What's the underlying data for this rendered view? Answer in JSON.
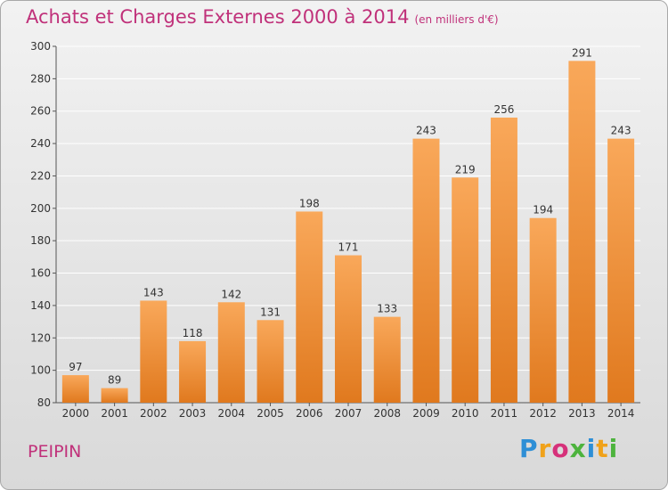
{
  "header": {
    "title": "Achats et Charges Externes 2000 à 2014",
    "subtitle": "(en milliers d'€)"
  },
  "footer": {
    "place": "PEIPIN",
    "logo_letters": [
      "P",
      "r",
      "o",
      "x",
      "i",
      "t",
      "i"
    ]
  },
  "colors": {
    "title": "#c0317a",
    "bar_top": "#f9a85a",
    "bar_bottom": "#e0791e",
    "gridline": "#ffffff"
  },
  "chart_data": {
    "type": "bar",
    "categories": [
      "2000",
      "2001",
      "2002",
      "2003",
      "2004",
      "2005",
      "2006",
      "2007",
      "2008",
      "2009",
      "2010",
      "2011",
      "2012",
      "2013",
      "2014"
    ],
    "values": [
      97,
      89,
      143,
      118,
      142,
      131,
      198,
      171,
      133,
      243,
      219,
      256,
      194,
      291,
      243
    ],
    "title": "Achats et Charges Externes 2000 à 2014",
    "ylim": [
      80,
      300
    ],
    "yticks": [
      80,
      100,
      120,
      140,
      160,
      180,
      200,
      220,
      240,
      260,
      280,
      300
    ],
    "grid": true
  }
}
